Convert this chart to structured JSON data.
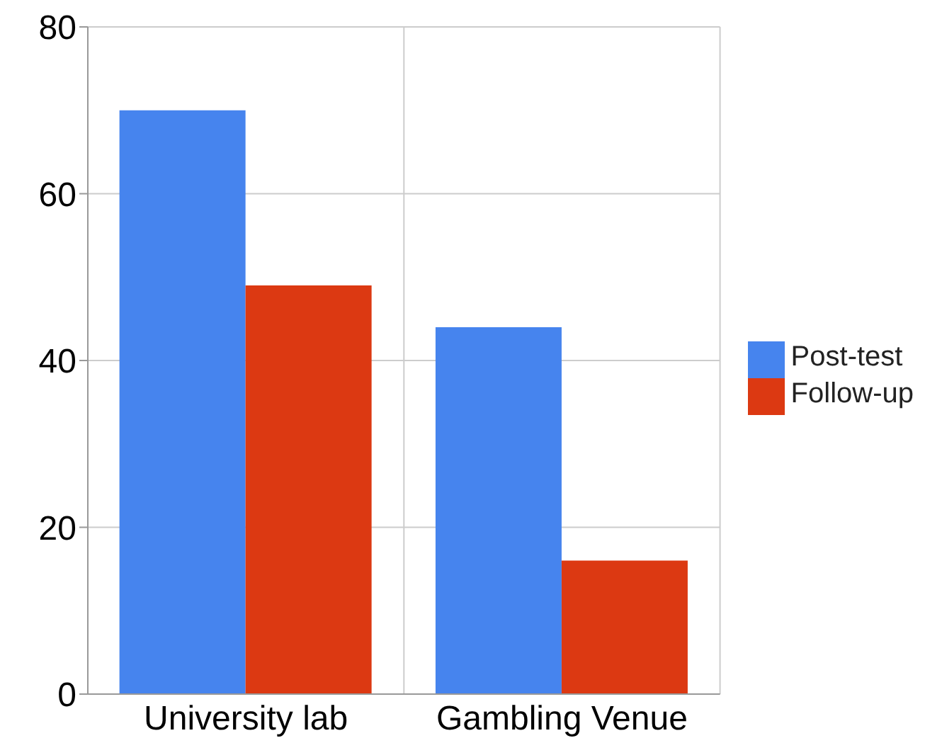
{
  "chart_data": {
    "type": "bar",
    "categories": [
      "University lab",
      "Gambling Venue"
    ],
    "series": [
      {
        "name": "Post-test",
        "color": "#4684ee",
        "values": [
          70,
          44
        ]
      },
      {
        "name": "Follow-up",
        "color": "#dc3912",
        "values": [
          49,
          16
        ]
      }
    ],
    "ylim": [
      0,
      80
    ],
    "yticks": [
      0,
      20,
      40,
      60,
      80
    ],
    "grid": true,
    "legend": "right"
  }
}
